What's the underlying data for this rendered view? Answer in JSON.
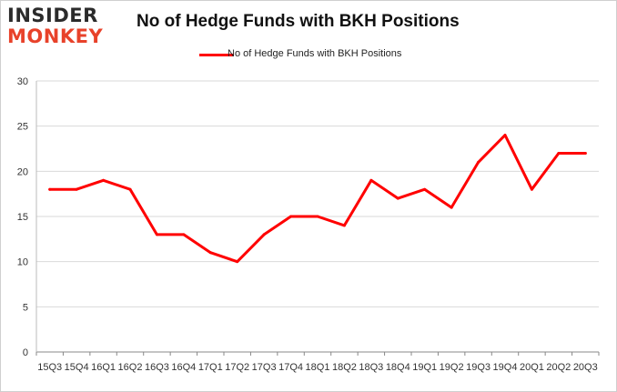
{
  "header": {
    "logo_line1": "INSIDER",
    "logo_line2": "MONKEY",
    "title": "No of Hedge Funds with BKH Positions"
  },
  "colors": {
    "line": "#ff0000",
    "logo_red": "#e8422a",
    "logo_dark": "#2b2b2b",
    "grid": "#d9d9d9"
  },
  "chart_data": {
    "type": "line",
    "title": "No of Hedge Funds with BKH Positions",
    "xlabel": "",
    "ylabel": "",
    "ylim": [
      0,
      30
    ],
    "yticks": [
      0,
      5,
      10,
      15,
      20,
      25,
      30
    ],
    "grid": true,
    "legend": "top-center",
    "categories": [
      "15Q3",
      "15Q4",
      "16Q1",
      "16Q2",
      "16Q3",
      "16Q4",
      "17Q1",
      "17Q2",
      "17Q3",
      "17Q4",
      "18Q1",
      "18Q2",
      "18Q3",
      "18Q4",
      "19Q1",
      "19Q2",
      "19Q3",
      "19Q4",
      "20Q1",
      "20Q2",
      "20Q3"
    ],
    "series": [
      {
        "name": "No of Hedge Funds with BKH Positions",
        "values": [
          18,
          18,
          19,
          18,
          13,
          13,
          11,
          10,
          13,
          15,
          15,
          14,
          19,
          17,
          18,
          16,
          21,
          24,
          18,
          22,
          22
        ]
      }
    ]
  }
}
